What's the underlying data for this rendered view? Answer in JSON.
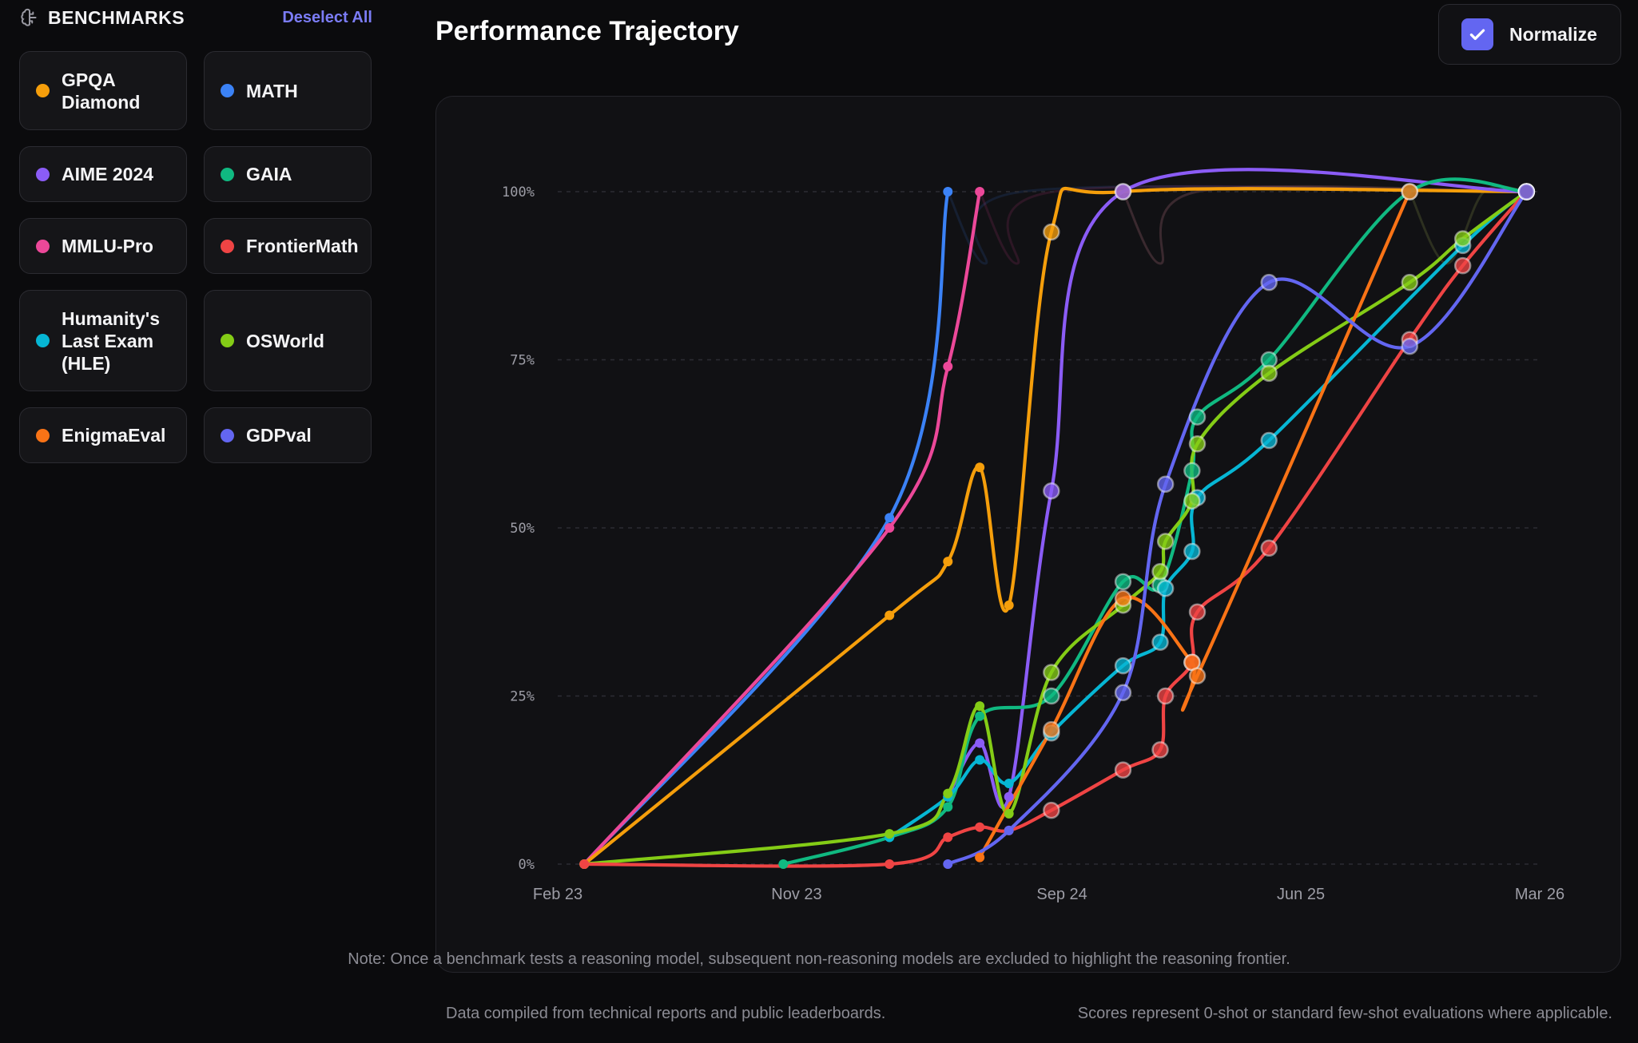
{
  "sidebar": {
    "title": "BENCHMARKS",
    "deselect_label": "Deselect All",
    "icon": "brain-icon"
  },
  "benchmarks": [
    {
      "label": "GPQA Diamond",
      "color": "#f59e0b"
    },
    {
      "label": "MATH",
      "color": "#3b82f6"
    },
    {
      "label": "AIME 2024",
      "color": "#8b5cf6"
    },
    {
      "label": "GAIA",
      "color": "#10b981"
    },
    {
      "label": "MMLU-Pro",
      "color": "#ec4899"
    },
    {
      "label": "FrontierMath",
      "color": "#ef4444"
    },
    {
      "label": "Humanity's Last Exam (HLE)",
      "color": "#06b6d4"
    },
    {
      "label": "OSWorld",
      "color": "#84cc16"
    },
    {
      "label": "EnigmaEval",
      "color": "#f97316"
    },
    {
      "label": "GDPval",
      "color": "#6366f1"
    }
  ],
  "header": {
    "title": "Performance Trajectory"
  },
  "normalize": {
    "label": "Normalize",
    "checked": true,
    "icon": "check-icon"
  },
  "chart_note": "Note: Once a benchmark tests a reasoning model, subsequent non-reasoning models are excluded to highlight the reasoning frontier.",
  "footer": {
    "left": "Data compiled from technical reports and public leaderboards.",
    "right": "Scores represent 0-shot or standard few-shot evaluations where applicable."
  },
  "chart_data": {
    "type": "line",
    "title": "Performance Trajectory",
    "xlabel": "",
    "ylabel": "",
    "x_unit": "months since Feb 2023",
    "xlim": [
      0,
      37
    ],
    "ylim": [
      0,
      100
    ],
    "x_ticks": [
      {
        "v": 0,
        "label": "Feb 23"
      },
      {
        "v": 9,
        "label": "Nov 23"
      },
      {
        "v": 19,
        "label": "Sep 24"
      },
      {
        "v": 28,
        "label": "Jun 25"
      },
      {
        "v": 37,
        "label": "Mar 26"
      }
    ],
    "y_ticks": [
      {
        "v": 0,
        "label": "0%"
      },
      {
        "v": 25,
        "label": "25%"
      },
      {
        "v": 50,
        "label": "50%"
      },
      {
        "v": 75,
        "label": "75%"
      },
      {
        "v": 100,
        "label": "100%"
      }
    ],
    "grid": true,
    "series": [
      {
        "name": "MATH",
        "color": "#3b82f6",
        "points": [
          [
            1,
            0
          ],
          [
            12.5,
            51.5
          ],
          [
            14.7,
            100
          ]
        ]
      },
      {
        "name": "MMLU-Pro",
        "color": "#ec4899",
        "points": [
          [
            1,
            0
          ],
          [
            12.5,
            50
          ],
          [
            14.7,
            74
          ],
          [
            15.9,
            100
          ]
        ]
      },
      {
        "name": "GPQA Diamond",
        "color": "#f59e0b",
        "points": [
          [
            1,
            0
          ],
          [
            12.5,
            37
          ],
          [
            14.7,
            45
          ],
          [
            15.9,
            59
          ],
          [
            17,
            38.5
          ],
          [
            18.6,
            94
          ],
          [
            21.3,
            100
          ],
          [
            36.5,
            100
          ]
        ]
      },
      {
        "name": "AIME 2024",
        "color": "#8b5cf6",
        "points": [
          [
            14.7,
            10
          ],
          [
            15.9,
            18
          ],
          [
            17,
            10
          ],
          [
            18.6,
            55.5
          ],
          [
            21.3,
            100
          ],
          [
            36.5,
            100
          ]
        ]
      },
      {
        "name": "GAIA",
        "color": "#10b981",
        "points": [
          [
            8.5,
            0
          ],
          [
            12.5,
            4
          ],
          [
            14.7,
            8.5
          ],
          [
            15.9,
            22
          ],
          [
            18.6,
            25
          ],
          [
            21.3,
            42
          ],
          [
            22.7,
            41.5
          ],
          [
            23.9,
            58.5
          ],
          [
            24.1,
            66.5
          ],
          [
            26.8,
            75
          ],
          [
            32.1,
            100
          ],
          [
            36.5,
            100
          ]
        ]
      },
      {
        "name": "Humanity's Last Exam (HLE)",
        "color": "#06b6d4",
        "points": [
          [
            12.5,
            4
          ],
          [
            14.7,
            10
          ],
          [
            15.9,
            15.5
          ],
          [
            17,
            12
          ],
          [
            18.6,
            19.5
          ],
          [
            21.3,
            29.5
          ],
          [
            22.7,
            33
          ],
          [
            22.9,
            41
          ],
          [
            23.9,
            46.5
          ],
          [
            24.1,
            54.5
          ],
          [
            26.8,
            63
          ],
          [
            34.1,
            92
          ],
          [
            36.5,
            100
          ]
        ]
      },
      {
        "name": "OSWorld",
        "color": "#84cc16",
        "points": [
          [
            1,
            0
          ],
          [
            12.5,
            4.5
          ],
          [
            14.7,
            10.5
          ],
          [
            15.9,
            23.5
          ],
          [
            17,
            7.5
          ],
          [
            18.6,
            28.5
          ],
          [
            21.3,
            38.5
          ],
          [
            22.7,
            43.5
          ],
          [
            22.9,
            48
          ],
          [
            23.9,
            54
          ],
          [
            24.1,
            62.5
          ],
          [
            26.8,
            73
          ],
          [
            32.1,
            86.5
          ],
          [
            34.1,
            93
          ],
          [
            36.5,
            100
          ]
        ]
      },
      {
        "name": "FrontierMath",
        "color": "#ef4444",
        "points": [
          [
            1,
            0
          ],
          [
            12.5,
            0
          ],
          [
            14.7,
            4
          ],
          [
            15.9,
            5.5
          ],
          [
            17,
            5
          ],
          [
            18.6,
            8
          ],
          [
            21.3,
            14
          ],
          [
            22.7,
            17
          ],
          [
            22.9,
            25
          ],
          [
            23.9,
            30
          ],
          [
            24.1,
            37.5
          ],
          [
            26.8,
            47
          ],
          [
            32.1,
            78
          ],
          [
            34.1,
            89
          ],
          [
            36.5,
            100
          ]
        ]
      },
      {
        "name": "EnigmaEval",
        "color": "#f97316",
        "points": [
          [
            15.9,
            1
          ],
          [
            18.6,
            20
          ],
          [
            21.3,
            39.5
          ],
          [
            23.9,
            30
          ],
          [
            24.1,
            28
          ],
          [
            32.1,
            100
          ]
        ]
      },
      {
        "name": "GDPval",
        "color": "#6366f1",
        "points": [
          [
            14.7,
            0
          ],
          [
            17,
            5
          ],
          [
            21.3,
            25.5
          ],
          [
            22.9,
            56.5
          ],
          [
            26.8,
            86.5
          ],
          [
            32.1,
            77
          ],
          [
            36.5,
            100
          ]
        ]
      }
    ]
  }
}
